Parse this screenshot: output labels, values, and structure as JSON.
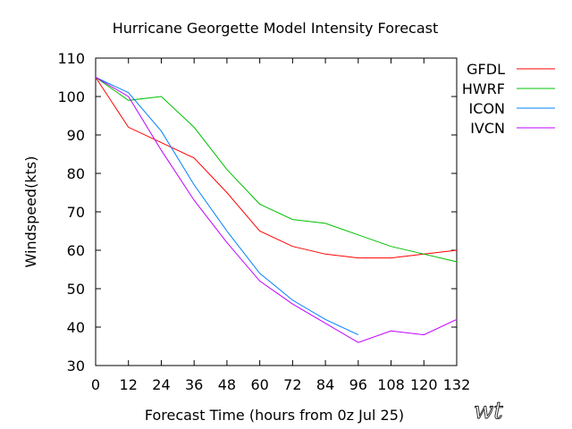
{
  "chart_data": {
    "type": "line",
    "title": "Hurricane Georgette Model Intensity Forecast",
    "xlabel": "Forecast Time (hours from 0z Jul 25)",
    "ylabel": "Windspeed(kts)",
    "xlim": [
      0,
      132
    ],
    "ylim": [
      30,
      110
    ],
    "xticks": [
      0,
      12,
      24,
      36,
      48,
      60,
      72,
      84,
      96,
      108,
      120,
      132
    ],
    "yticks": [
      30,
      40,
      50,
      60,
      70,
      80,
      90,
      100,
      110
    ],
    "grid": false,
    "legend_position": "outside-right",
    "series": [
      {
        "name": "GFDL",
        "color": "#ff0000",
        "x": [
          0,
          12,
          24,
          36,
          48,
          60,
          72,
          84,
          96,
          108,
          120,
          132
        ],
        "values": [
          105,
          92,
          88,
          84,
          75,
          65,
          61,
          59,
          58,
          58,
          59,
          60
        ]
      },
      {
        "name": "HWRF",
        "color": "#00c000",
        "x": [
          0,
          12,
          24,
          36,
          48,
          60,
          72,
          84,
          96,
          108,
          120,
          132
        ],
        "values": [
          105,
          99,
          100,
          92,
          81,
          72,
          68,
          67,
          64,
          61,
          59,
          57
        ]
      },
      {
        "name": "ICON",
        "color": "#0080ff",
        "x": [
          0,
          12,
          24,
          36,
          48,
          60,
          72,
          84,
          96
        ],
        "values": [
          105,
          101,
          91,
          77,
          65,
          54,
          47,
          42,
          38
        ]
      },
      {
        "name": "IVCN",
        "color": "#c000ff",
        "x": [
          0,
          12,
          24,
          36,
          48,
          60,
          72,
          84,
          96,
          108,
          120,
          132
        ],
        "values": [
          105,
          100,
          86,
          73,
          62,
          52,
          46,
          41,
          36,
          39,
          38,
          42
        ]
      }
    ]
  },
  "credit_text": "wt"
}
